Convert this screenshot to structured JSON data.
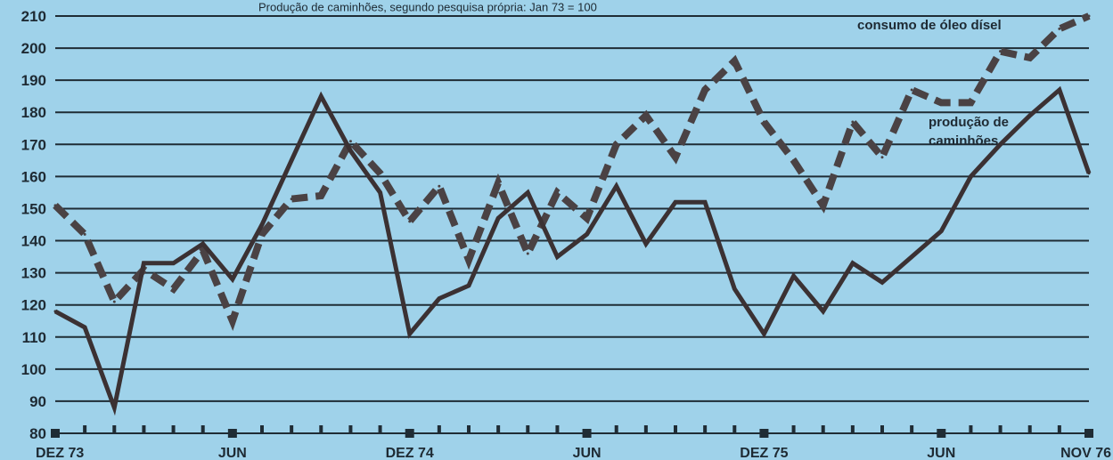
{
  "chart_data": {
    "type": "line",
    "title": "Produção de caminhões, segundo pesquisa própria: Jan 73 = 100",
    "xlabel": "",
    "ylabel": "",
    "ylim": [
      80,
      210
    ],
    "y_ticks": [
      80,
      90,
      100,
      110,
      120,
      130,
      140,
      150,
      160,
      170,
      180,
      190,
      200,
      210
    ],
    "x_range": [
      0,
      35
    ],
    "x_tick_labels": [
      {
        "label": "DEZ 73",
        "x": 0
      },
      {
        "label": "JUN",
        "x": 6
      },
      {
        "label": "DEZ 74",
        "x": 12
      },
      {
        "label": "JUN",
        "x": 18
      },
      {
        "label": "DEZ 75",
        "x": 24
      },
      {
        "label": "JUN",
        "x": 30
      },
      {
        "label": "NOV 76",
        "x": 35
      }
    ],
    "grid": true,
    "series": [
      {
        "name": "consumo de óleo dísel",
        "style": "dashed",
        "color": "#4a4244",
        "values": [
          151,
          142,
          121,
          131,
          125,
          137,
          115,
          142,
          153,
          154,
          171,
          161,
          146,
          157,
          134,
          158,
          136,
          155,
          147,
          170,
          179,
          166,
          187,
          196,
          177,
          165,
          151,
          177,
          166,
          187,
          183,
          183,
          199,
          197,
          206,
          210
        ]
      },
      {
        "name": "produção de caminhões",
        "style": "solid",
        "color": "#3b3133",
        "values": [
          118,
          113,
          88,
          133,
          133,
          139,
          128,
          145,
          165,
          185,
          168,
          155,
          111,
          122,
          126,
          147,
          155,
          135,
          142,
          157,
          139,
          152,
          152,
          125,
          111,
          129,
          118,
          133,
          127,
          135,
          143,
          160,
          170,
          179,
          187,
          161
        ]
      }
    ]
  },
  "colors": {
    "background": "#9fd2ea",
    "grid": "#1f2c35"
  }
}
